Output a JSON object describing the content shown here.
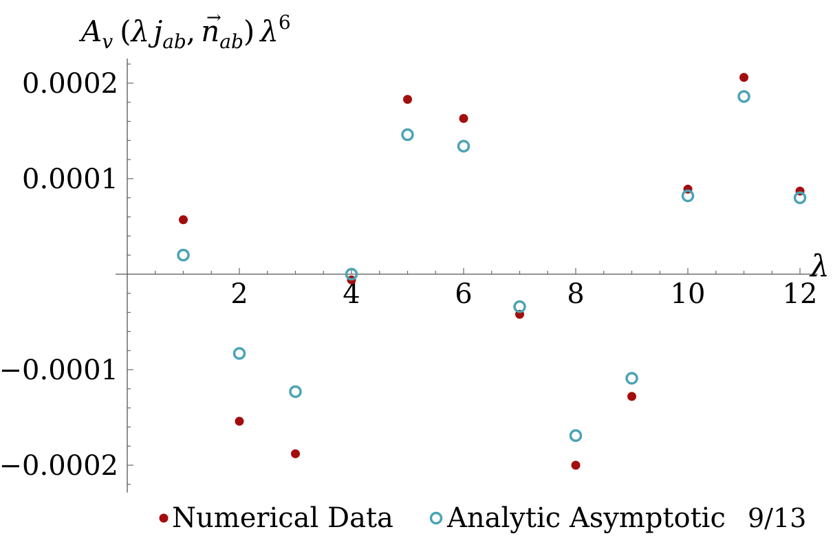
{
  "chart_data": {
    "type": "scatter",
    "ylabel_parts": {
      "a": "A",
      "v": "v",
      "open": "(",
      "lambda1": "λ",
      "j": "j",
      "ab1": "ab",
      "comma": ",",
      "arrow": "→",
      "n": "n",
      "ab2": "ab",
      "close": ")",
      "lambda2": "λ",
      "exp": "6"
    },
    "xlabel": "λ",
    "xlim": [
      0,
      12.5
    ],
    "ylim": [
      -0.00022,
      0.00022
    ],
    "x_ticks": [
      2,
      4,
      6,
      8,
      10,
      12
    ],
    "x_tick_labels": [
      "2",
      "4",
      "6",
      "8",
      "10",
      "12"
    ],
    "y_ticks": [
      0.0002,
      0.0001,
      -0.0001,
      -0.0002
    ],
    "y_tick_labels": [
      "0.0002",
      "0.0001",
      "−0.0001",
      "−0.0002"
    ],
    "series": [
      {
        "name": "Numerical Data",
        "marker": "filled-circle",
        "color": "#a30d0d",
        "x": [
          1,
          2,
          3,
          4,
          5,
          6,
          7,
          8,
          9,
          10,
          11,
          12
        ],
        "y": [
          5.7e-05,
          -0.000154,
          -0.000188,
          -6e-06,
          0.000183,
          0.000163,
          -4.2e-05,
          -0.0002,
          -0.000128,
          8.9e-05,
          0.000206,
          8.7e-05
        ]
      },
      {
        "name": "Analytic Asymptotic",
        "marker": "open-circle",
        "color": "#4aa3b5",
        "x": [
          1,
          2,
          3,
          4,
          5,
          6,
          7,
          8,
          9,
          10,
          11,
          12
        ],
        "y": [
          2e-05,
          -8.3e-05,
          -0.000123,
          0.0,
          0.000146,
          0.000134,
          -3.4e-05,
          -0.000169,
          -0.000109,
          8.2e-05,
          0.000186,
          8e-05
        ]
      }
    ],
    "legend_placement": "bottom"
  },
  "page_number": "9/13"
}
